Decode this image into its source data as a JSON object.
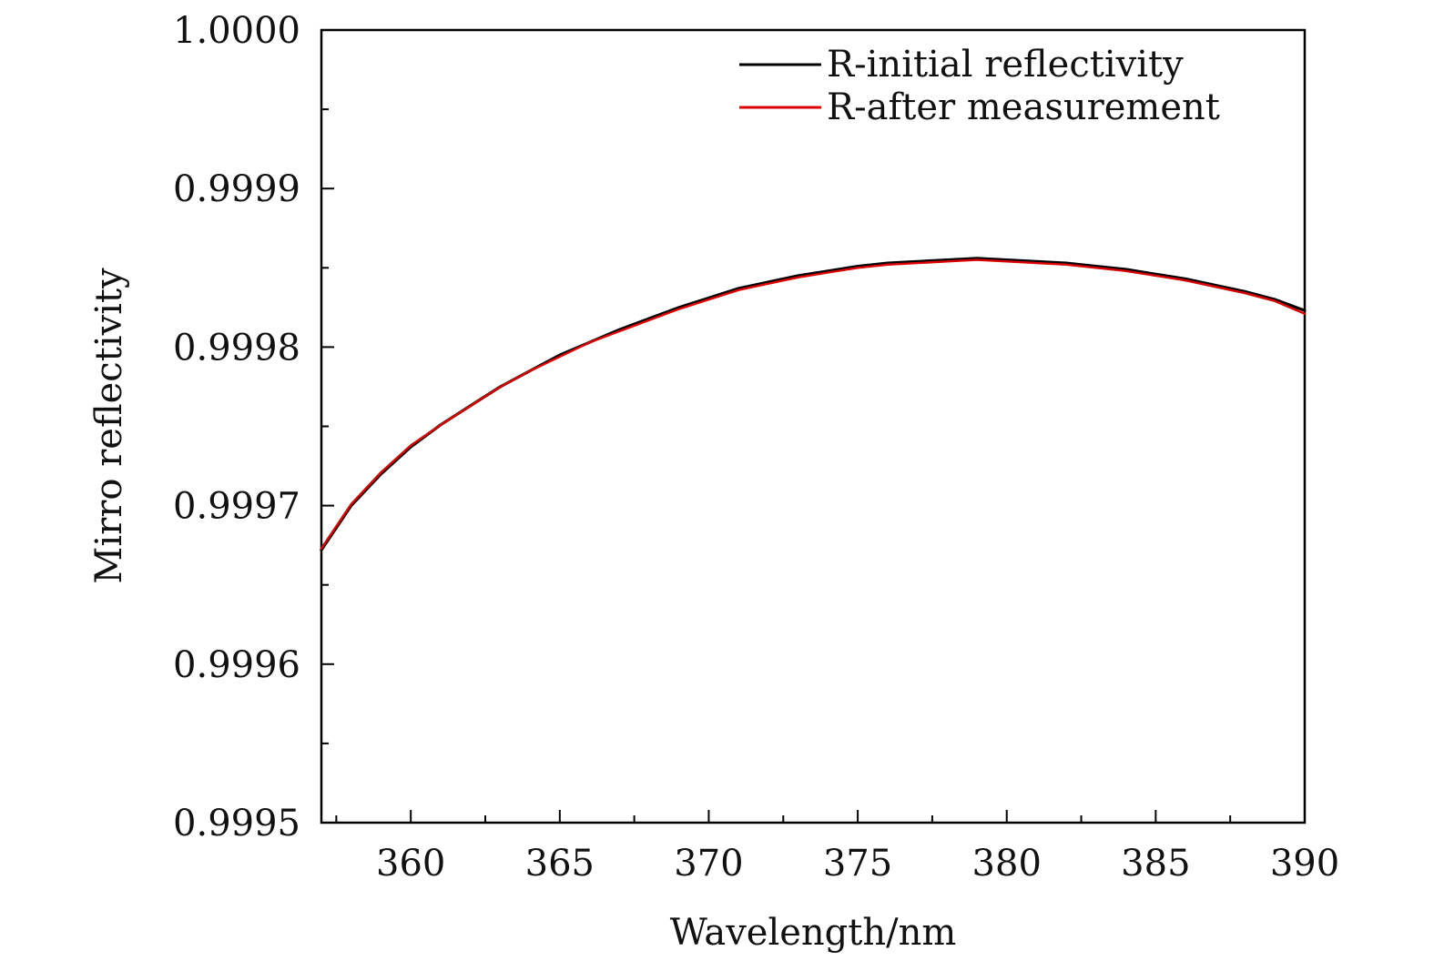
{
  "chart_data": {
    "type": "line",
    "title": "",
    "xlabel": "Wavelength/nm",
    "ylabel": "Mirro reflectivity",
    "xlim": [
      357,
      390
    ],
    "ylim": [
      0.9995,
      1.0
    ],
    "x_ticks": [
      360,
      365,
      370,
      375,
      380,
      385,
      390
    ],
    "x_tick_labels": [
      "360",
      "365",
      "370",
      "375",
      "380",
      "385",
      "390"
    ],
    "y_ticks": [
      0.9995,
      0.9996,
      0.9997,
      0.9998,
      0.9999,
      1.0
    ],
    "y_tick_labels": [
      "0.9995",
      "0.9996",
      "0.9997",
      "0.9998",
      "0.9999",
      "1.0000"
    ],
    "grid": false,
    "legend_position": "top-right",
    "series": [
      {
        "name": "R-initial reflectivity",
        "color": "#000000",
        "x": [
          357,
          358,
          359,
          360,
          361,
          362,
          363,
          364,
          365,
          366,
          367,
          368,
          369,
          370,
          371,
          372,
          373,
          374,
          375,
          376,
          377,
          378,
          379,
          380,
          381,
          382,
          383,
          384,
          385,
          386,
          387,
          388,
          389,
          390
        ],
        "y": [
          0.999672,
          0.9997,
          0.99972,
          0.999737,
          0.999751,
          0.999763,
          0.999775,
          0.999785,
          0.999795,
          0.999803,
          0.999811,
          0.999818,
          0.999825,
          0.999831,
          0.999837,
          0.999841,
          0.999845,
          0.999848,
          0.999851,
          0.999853,
          0.999854,
          0.999855,
          0.999856,
          0.999855,
          0.999854,
          0.999853,
          0.999851,
          0.999849,
          0.999846,
          0.999843,
          0.999839,
          0.999835,
          0.99983,
          0.999823
        ]
      },
      {
        "name": "R-after measurement",
        "color": "#dd0000",
        "x": [
          357,
          358,
          359,
          360,
          361,
          362,
          363,
          364,
          365,
          366,
          367,
          368,
          369,
          370,
          371,
          372,
          373,
          374,
          375,
          376,
          377,
          378,
          379,
          380,
          381,
          382,
          383,
          384,
          385,
          386,
          387,
          388,
          389,
          390
        ],
        "y": [
          0.999673,
          0.999701,
          0.999721,
          0.999738,
          0.999751,
          0.999763,
          0.999775,
          0.999785,
          0.999794,
          0.999803,
          0.99981,
          0.999817,
          0.999824,
          0.99983,
          0.999836,
          0.99984,
          0.999844,
          0.999847,
          0.99985,
          0.999852,
          0.999853,
          0.999854,
          0.999855,
          0.999854,
          0.999853,
          0.999852,
          0.99985,
          0.999848,
          0.999845,
          0.999842,
          0.999838,
          0.999834,
          0.999829,
          0.999821
        ]
      }
    ]
  }
}
